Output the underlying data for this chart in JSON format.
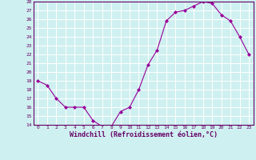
{
  "x": [
    0,
    1,
    2,
    3,
    4,
    5,
    6,
    7,
    8,
    9,
    10,
    11,
    12,
    13,
    14,
    15,
    16,
    17,
    18,
    19,
    20,
    21,
    22,
    23
  ],
  "y": [
    19.0,
    18.5,
    17.0,
    16.0,
    16.0,
    16.0,
    14.5,
    13.8,
    13.8,
    15.5,
    16.0,
    18.0,
    20.8,
    22.5,
    25.8,
    26.8,
    27.0,
    27.5,
    28.0,
    27.8,
    26.5,
    25.8,
    24.0,
    22.0
  ],
  "xlim": [
    -0.5,
    23.5
  ],
  "ylim": [
    14,
    28
  ],
  "yticks": [
    14,
    15,
    16,
    17,
    18,
    19,
    20,
    21,
    22,
    23,
    24,
    25,
    26,
    27,
    28
  ],
  "xticks": [
    0,
    1,
    2,
    3,
    4,
    5,
    6,
    7,
    8,
    9,
    10,
    11,
    12,
    13,
    14,
    15,
    16,
    17,
    18,
    19,
    20,
    21,
    22,
    23
  ],
  "xlabel": "Windchill (Refroidissement éolien,°C)",
  "line_color": "#990099",
  "marker": "D",
  "marker_size": 2,
  "bg_color": "#cff0f0",
  "grid_color": "#ffffff",
  "tick_fontsize": 4.5,
  "xlabel_fontsize": 6,
  "label_color": "#660066",
  "spine_color": "#660066"
}
